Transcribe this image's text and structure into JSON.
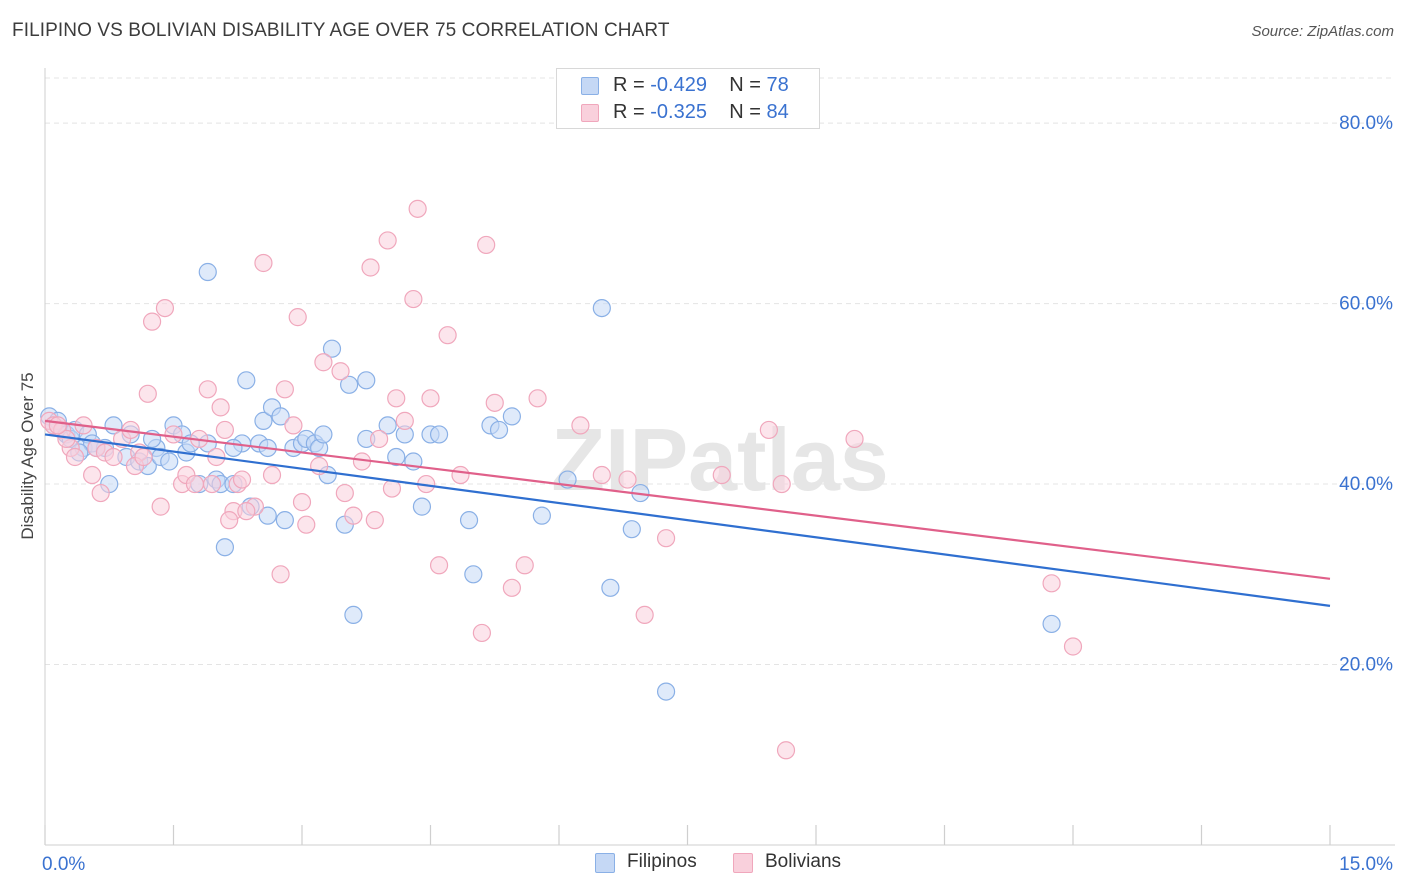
{
  "chart_data": {
    "type": "scatter",
    "title": "FILIPINO VS BOLIVIAN DISABILITY AGE OVER 75 CORRELATION CHART",
    "source": "Source: ZipAtlas.com",
    "watermark": "ZIPatlas",
    "ylabel": "Disability Age Over 75",
    "xlabel": "",
    "xlim": [
      0,
      15
    ],
    "ylim": [
      0,
      85
    ],
    "x_tick_labels": [
      "0.0%",
      "15.0%"
    ],
    "y_ticks": [
      20,
      40,
      60,
      80
    ],
    "y_tick_labels": [
      "20.0%",
      "40.0%",
      "60.0%",
      "80.0%"
    ],
    "legend": {
      "rows": [
        {
          "r_label": "R = ",
          "r_value": "-0.429",
          "n_label": "N = ",
          "n_value": "78"
        },
        {
          "r_label": "R = ",
          "r_value": "-0.325",
          "n_label": "N = ",
          "n_value": "84"
        }
      ]
    },
    "series": [
      {
        "name": "Filipinos",
        "color": "#8ab0e6",
        "fill": "#c5d8f5",
        "line_color": "#2f6fd0",
        "trend": {
          "x0": 0,
          "y0": 45.5,
          "x1": 15,
          "y1": 26.5
        },
        "points": [
          [
            0.05,
            47.5
          ],
          [
            0.1,
            46.5
          ],
          [
            0.15,
            47.0
          ],
          [
            0.2,
            46.0
          ],
          [
            0.25,
            45.5
          ],
          [
            0.3,
            45.0
          ],
          [
            0.35,
            46.0
          ],
          [
            0.45,
            44.0
          ],
          [
            0.5,
            45.5
          ],
          [
            0.55,
            44.5
          ],
          [
            0.7,
            44.0
          ],
          [
            0.75,
            40.0
          ],
          [
            0.8,
            46.5
          ],
          [
            0.95,
            43.0
          ],
          [
            1.0,
            45.5
          ],
          [
            1.1,
            42.5
          ],
          [
            1.2,
            42.0
          ],
          [
            1.3,
            44.0
          ],
          [
            1.35,
            43.0
          ],
          [
            1.45,
            42.5
          ],
          [
            1.5,
            46.5
          ],
          [
            1.6,
            45.5
          ],
          [
            1.65,
            43.5
          ],
          [
            1.7,
            44.5
          ],
          [
            1.8,
            40.0
          ],
          [
            1.9,
            44.5
          ],
          [
            1.9,
            63.5
          ],
          [
            2.0,
            40.5
          ],
          [
            2.05,
            40.0
          ],
          [
            2.1,
            33.0
          ],
          [
            2.2,
            40.0
          ],
          [
            2.3,
            44.5
          ],
          [
            2.35,
            51.5
          ],
          [
            2.4,
            37.5
          ],
          [
            2.5,
            44.5
          ],
          [
            2.55,
            47.0
          ],
          [
            2.6,
            44.0
          ],
          [
            2.6,
            36.5
          ],
          [
            2.65,
            48.5
          ],
          [
            2.75,
            47.5
          ],
          [
            2.8,
            36.0
          ],
          [
            2.9,
            44.0
          ],
          [
            3.0,
            44.5
          ],
          [
            3.05,
            45.0
          ],
          [
            3.15,
            44.5
          ],
          [
            3.2,
            44.0
          ],
          [
            3.25,
            45.5
          ],
          [
            3.3,
            41.0
          ],
          [
            3.35,
            55.0
          ],
          [
            3.5,
            35.5
          ],
          [
            3.55,
            51.0
          ],
          [
            3.75,
            51.5
          ],
          [
            3.6,
            25.5
          ],
          [
            3.75,
            45.0
          ],
          [
            4.0,
            46.5
          ],
          [
            4.2,
            45.5
          ],
          [
            4.1,
            43.0
          ],
          [
            4.4,
            37.5
          ],
          [
            4.5,
            45.5
          ],
          [
            4.6,
            45.5
          ],
          [
            4.95,
            36.0
          ],
          [
            5.0,
            30.0
          ],
          [
            5.2,
            46.5
          ],
          [
            5.3,
            46.0
          ],
          [
            5.45,
            47.5
          ],
          [
            5.8,
            36.5
          ],
          [
            6.1,
            40.5
          ],
          [
            6.5,
            59.5
          ],
          [
            6.6,
            28.5
          ],
          [
            6.85,
            35.0
          ],
          [
            6.95,
            39.0
          ],
          [
            7.25,
            17.0
          ],
          [
            4.3,
            42.5
          ],
          [
            2.2,
            44.0
          ],
          [
            1.25,
            45.0
          ],
          [
            0.6,
            44.0
          ],
          [
            11.75,
            24.5
          ],
          [
            0.4,
            43.5
          ]
        ]
      },
      {
        "name": "Bolivians",
        "color": "#f0a7bc",
        "fill": "#f9d0dc",
        "line_color": "#e0608a",
        "trend": {
          "x0": 0,
          "y0": 47.0,
          "x1": 15,
          "y1": 29.5
        },
        "points": [
          [
            0.05,
            47.0
          ],
          [
            0.1,
            46.5
          ],
          [
            0.2,
            46.0
          ],
          [
            0.3,
            44.0
          ],
          [
            0.35,
            43.0
          ],
          [
            0.45,
            46.5
          ],
          [
            0.55,
            41.0
          ],
          [
            0.6,
            44.0
          ],
          [
            0.65,
            39.0
          ],
          [
            0.7,
            43.5
          ],
          [
            0.8,
            43.0
          ],
          [
            0.9,
            45.0
          ],
          [
            1.0,
            46.0
          ],
          [
            1.1,
            43.5
          ],
          [
            1.2,
            50.0
          ],
          [
            1.25,
            58.0
          ],
          [
            1.35,
            37.5
          ],
          [
            1.4,
            59.5
          ],
          [
            1.5,
            45.5
          ],
          [
            1.6,
            40.0
          ],
          [
            1.65,
            41.0
          ],
          [
            1.75,
            40.0
          ],
          [
            1.8,
            45.0
          ],
          [
            1.9,
            50.5
          ],
          [
            1.95,
            40.0
          ],
          [
            2.0,
            43.0
          ],
          [
            2.05,
            48.5
          ],
          [
            2.1,
            46.0
          ],
          [
            2.2,
            37.0
          ],
          [
            2.25,
            40.0
          ],
          [
            2.3,
            40.5
          ],
          [
            2.45,
            37.5
          ],
          [
            2.55,
            64.5
          ],
          [
            2.65,
            41.0
          ],
          [
            2.75,
            30.0
          ],
          [
            2.8,
            50.5
          ],
          [
            2.9,
            46.5
          ],
          [
            2.95,
            58.5
          ],
          [
            3.0,
            38.0
          ],
          [
            3.05,
            35.5
          ],
          [
            3.2,
            42.0
          ],
          [
            3.25,
            53.5
          ],
          [
            3.45,
            52.5
          ],
          [
            3.5,
            39.0
          ],
          [
            3.6,
            36.5
          ],
          [
            3.7,
            42.5
          ],
          [
            3.8,
            64.0
          ],
          [
            3.9,
            45.0
          ],
          [
            4.0,
            67.0
          ],
          [
            4.05,
            39.5
          ],
          [
            4.1,
            49.5
          ],
          [
            4.2,
            47.0
          ],
          [
            4.3,
            60.5
          ],
          [
            4.35,
            70.5
          ],
          [
            4.45,
            40.0
          ],
          [
            4.5,
            49.5
          ],
          [
            4.6,
            31.0
          ],
          [
            4.7,
            56.5
          ],
          [
            4.85,
            41.0
          ],
          [
            5.1,
            23.5
          ],
          [
            5.15,
            66.5
          ],
          [
            5.25,
            49.0
          ],
          [
            5.45,
            28.5
          ],
          [
            5.6,
            31.0
          ],
          [
            5.75,
            49.5
          ],
          [
            6.25,
            46.5
          ],
          [
            6.5,
            41.0
          ],
          [
            6.8,
            40.5
          ],
          [
            7.0,
            25.5
          ],
          [
            7.25,
            34.0
          ],
          [
            7.9,
            41.0
          ],
          [
            8.45,
            46.0
          ],
          [
            8.6,
            40.0
          ],
          [
            8.65,
            10.5
          ],
          [
            9.45,
            45.0
          ],
          [
            11.75,
            29.0
          ],
          [
            12.0,
            22.0
          ],
          [
            2.15,
            36.0
          ],
          [
            1.05,
            42.0
          ],
          [
            0.25,
            45.0
          ],
          [
            3.85,
            36.0
          ],
          [
            2.35,
            37.0
          ],
          [
            1.15,
            43.0
          ],
          [
            0.15,
            46.5
          ]
        ]
      }
    ]
  }
}
